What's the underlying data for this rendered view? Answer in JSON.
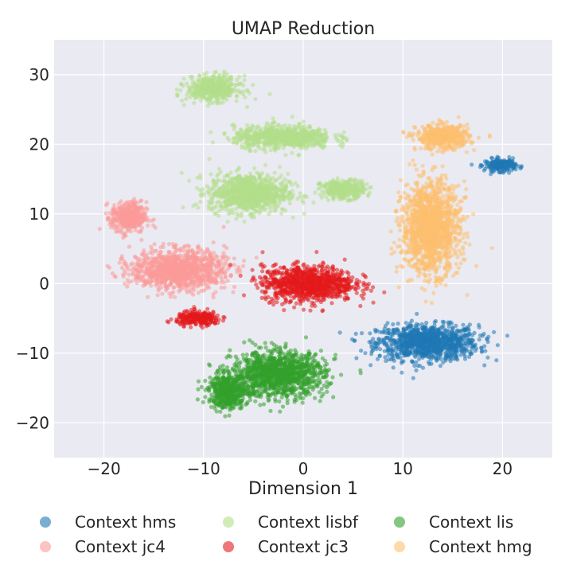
{
  "chart_data": {
    "type": "scatter",
    "title": "UMAP Reduction",
    "xlabel": "Dimension 1",
    "ylabel": "",
    "xlim": [
      -25,
      25
    ],
    "ylim": [
      -25,
      35
    ],
    "xticks": [
      -20,
      -10,
      0,
      10,
      20
    ],
    "yticks": [
      -20,
      -10,
      0,
      10,
      20,
      30
    ],
    "xtick_labels": [
      "−20",
      "−10",
      "0",
      "10",
      "20"
    ],
    "ytick_labels": [
      "−20",
      "−10",
      "0",
      "10",
      "20",
      "30"
    ],
    "grid": true,
    "legend_position": "bottom",
    "series": [
      {
        "name": "Context hms",
        "color": "#1f78b4",
        "clusters": [
          {
            "cx": 12.5,
            "cy": -8.5,
            "sx": 4.6,
            "sy": 2.3
          },
          {
            "cx": 19.8,
            "cy": 17.0,
            "sx": 1.4,
            "sy": 0.8
          }
        ]
      },
      {
        "name": "Context lisbf",
        "color": "#b2df8a",
        "clusters": [
          {
            "cx": -5.5,
            "cy": 13.0,
            "sx": 3.6,
            "sy": 2.5
          },
          {
            "cx": -2.0,
            "cy": 21.0,
            "sx": 4.5,
            "sy": 1.5
          },
          {
            "cx": -9.0,
            "cy": 28.0,
            "sx": 2.4,
            "sy": 1.6
          },
          {
            "cx": 4.0,
            "cy": 13.5,
            "sx": 2.0,
            "sy": 1.2
          }
        ]
      },
      {
        "name": "Context lis",
        "color": "#33a02c",
        "clusters": [
          {
            "cx": -2.5,
            "cy": -13.0,
            "sx": 4.2,
            "sy": 2.9
          },
          {
            "cx": -7.5,
            "cy": -15.5,
            "sx": 1.8,
            "sy": 2.2
          }
        ]
      },
      {
        "name": "Context jc4",
        "color": "#fb9a99",
        "clusters": [
          {
            "cx": -12.5,
            "cy": 2.0,
            "sx": 4.3,
            "sy": 2.6
          },
          {
            "cx": -17.5,
            "cy": 9.5,
            "sx": 1.6,
            "sy": 2.0
          }
        ]
      },
      {
        "name": "Context jc3",
        "color": "#e31a1c",
        "clusters": [
          {
            "cx": 0.5,
            "cy": 0.0,
            "sx": 4.2,
            "sy": 2.3
          },
          {
            "cx": -10.5,
            "cy": -5.0,
            "sx": 2.0,
            "sy": 0.9
          }
        ]
      },
      {
        "name": "Context hmg",
        "color": "#fdbf6f",
        "clusters": [
          {
            "cx": 12.8,
            "cy": 8.0,
            "sx": 2.6,
            "sy": 5.8
          },
          {
            "cx": 14.0,
            "cy": 21.0,
            "sx": 2.4,
            "sy": 1.6
          }
        ]
      }
    ]
  }
}
